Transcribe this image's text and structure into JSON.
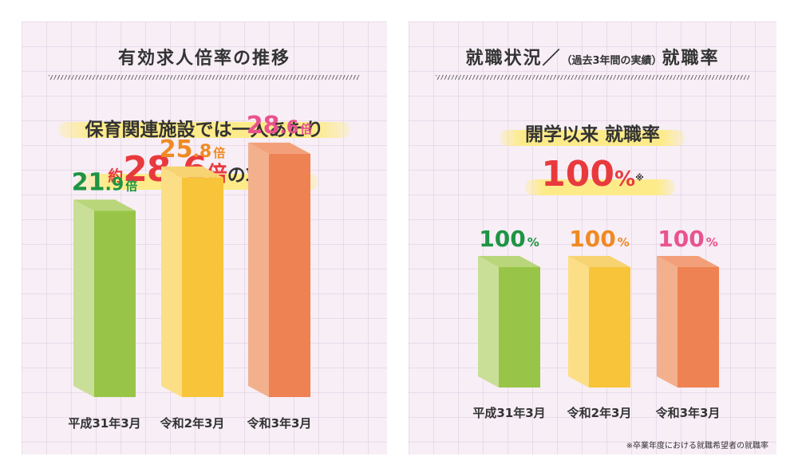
{
  "left": {
    "title": "有効求人倍率の推移",
    "headline1": "保育関連施設では一人あたり",
    "headline2_prefix": "約",
    "headline2_value": "28.6",
    "headline2_unit": "倍",
    "headline2_suffix": "の求人！"
  },
  "right": {
    "title_main": "就職状況／",
    "title_small": "（過去3年間の実績）",
    "title_end": "就職率",
    "headline1": "開学以来 就職率",
    "headline2_value": "100",
    "headline2_unit": "%",
    "headline2_mark": "※",
    "footnote": "※卒業年度における就職希望者の就職率"
  },
  "colors": {
    "green": "#98c547",
    "yellow": "#f8c43a",
    "orange": "#ee8252",
    "label_green": "#1e9444",
    "label_orange": "#ef8a22",
    "label_pink": "#e8538e",
    "red": "#e83a3d"
  },
  "chart_data": [
    {
      "type": "bar",
      "title": "有効求人倍率の推移",
      "categories": [
        "平成31年3月",
        "令和2年3月",
        "令和3年3月"
      ],
      "values": [
        21.9,
        25.8,
        28.6
      ],
      "labels": [
        {
          "num": "21.9",
          "unit": "倍"
        },
        {
          "num": "25.8",
          "unit": "倍"
        },
        {
          "num": "28.6",
          "unit": "倍"
        }
      ],
      "ylim": [
        0,
        30
      ]
    },
    {
      "type": "bar",
      "title": "就職率",
      "categories": [
        "平成31年3月",
        "令和2年3月",
        "令和3年3月"
      ],
      "values": [
        100,
        100,
        100
      ],
      "labels": [
        {
          "num": "100",
          "unit": "%"
        },
        {
          "num": "100",
          "unit": "%"
        },
        {
          "num": "100",
          "unit": "%"
        }
      ],
      "ylim": [
        0,
        100
      ]
    }
  ]
}
